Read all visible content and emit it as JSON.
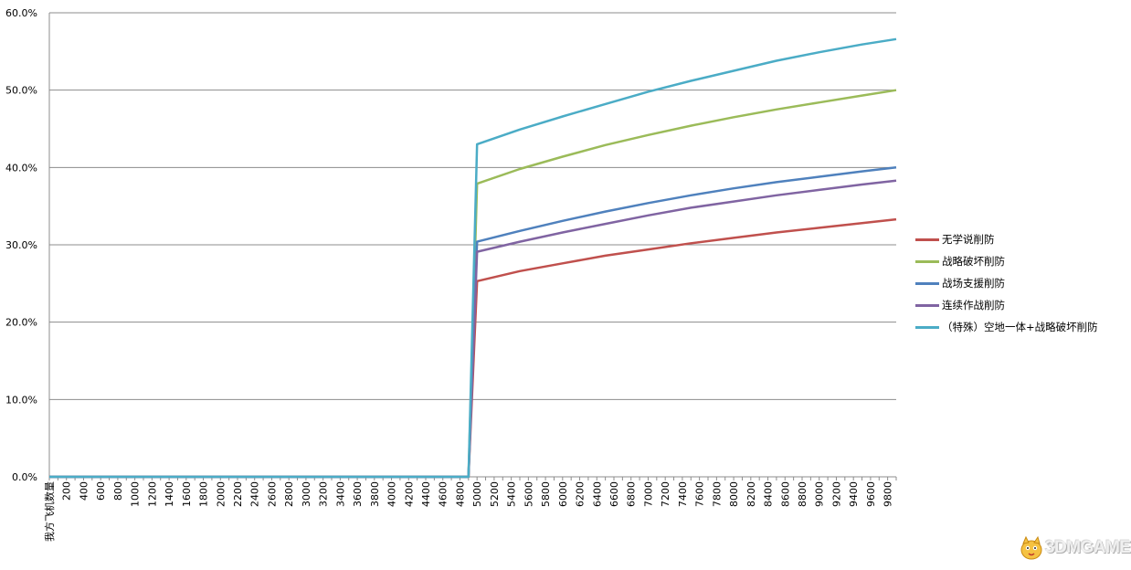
{
  "chart_data": {
    "type": "line",
    "title": "",
    "xlabel": "",
    "ylabel": "",
    "ylim": [
      0,
      0.6
    ],
    "grid": "horizontal",
    "legend_position": "right",
    "y_ticks": [
      "0.0%",
      "10.0%",
      "20.0%",
      "30.0%",
      "40.0%",
      "50.0%",
      "60.0%"
    ],
    "x_tick_labels": [
      "我方飞机数量",
      "200",
      "400",
      "600",
      "800",
      "1000",
      "1200",
      "1400",
      "1600",
      "1800",
      "2000",
      "2200",
      "2400",
      "2600",
      "2800",
      "3000",
      "3200",
      "3400",
      "3600",
      "3800",
      "4000",
      "4200",
      "4400",
      "4600",
      "4800",
      "5000",
      "5200",
      "5400",
      "5600",
      "5800",
      "6000",
      "6200",
      "6400",
      "6600",
      "6800",
      "7000",
      "7200",
      "7400",
      "7600",
      "7800",
      "8000",
      "8200",
      "8400",
      "8600",
      "8800",
      "9000",
      "9200",
      "9400",
      "9600",
      "9800"
    ],
    "x_range": [
      0,
      9900
    ],
    "step": {
      "before_x": 4900,
      "after_x": 5000
    },
    "series": [
      {
        "name": "无学说削防",
        "color": "#C0504D",
        "points": [
          [
            5000,
            0.253
          ],
          [
            5500,
            0.266
          ],
          [
            6000,
            0.276
          ],
          [
            6500,
            0.286
          ],
          [
            7000,
            0.294
          ],
          [
            7500,
            0.302
          ],
          [
            8000,
            0.309
          ],
          [
            8500,
            0.316
          ],
          [
            9000,
            0.322
          ],
          [
            9500,
            0.328
          ],
          [
            9900,
            0.333
          ]
        ]
      },
      {
        "name": "战略破坏削防",
        "color": "#9BBB59",
        "points": [
          [
            5000,
            0.379
          ],
          [
            5500,
            0.398
          ],
          [
            6000,
            0.414
          ],
          [
            6500,
            0.429
          ],
          [
            7000,
            0.442
          ],
          [
            7500,
            0.454
          ],
          [
            8000,
            0.465
          ],
          [
            8500,
            0.475
          ],
          [
            9000,
            0.484
          ],
          [
            9500,
            0.493
          ],
          [
            9900,
            0.5
          ]
        ]
      },
      {
        "name": "战场支援削防",
        "color": "#4F81BD",
        "points": [
          [
            5000,
            0.304
          ],
          [
            5500,
            0.318
          ],
          [
            6000,
            0.331
          ],
          [
            6500,
            0.343
          ],
          [
            7000,
            0.354
          ],
          [
            7500,
            0.364
          ],
          [
            8000,
            0.373
          ],
          [
            8500,
            0.381
          ],
          [
            9000,
            0.388
          ],
          [
            9500,
            0.395
          ],
          [
            9900,
            0.4
          ]
        ]
      },
      {
        "name": "连续作战削防",
        "color": "#8064A2",
        "points": [
          [
            5000,
            0.291
          ],
          [
            5500,
            0.304
          ],
          [
            6000,
            0.316
          ],
          [
            6500,
            0.327
          ],
          [
            7000,
            0.338
          ],
          [
            7500,
            0.348
          ],
          [
            8000,
            0.356
          ],
          [
            8500,
            0.364
          ],
          [
            9000,
            0.371
          ],
          [
            9500,
            0.378
          ],
          [
            9900,
            0.383
          ]
        ]
      },
      {
        "name": "（特殊）空地一体+战略破坏削防",
        "color": "#4BACC6",
        "points": [
          [
            5000,
            0.43
          ],
          [
            5500,
            0.449
          ],
          [
            6000,
            0.466
          ],
          [
            6500,
            0.482
          ],
          [
            7000,
            0.498
          ],
          [
            7500,
            0.512
          ],
          [
            8000,
            0.525
          ],
          [
            8500,
            0.538
          ],
          [
            9000,
            0.549
          ],
          [
            9500,
            0.559
          ],
          [
            9900,
            0.566
          ]
        ]
      }
    ]
  },
  "watermark": {
    "text": "3DMGAME"
  }
}
